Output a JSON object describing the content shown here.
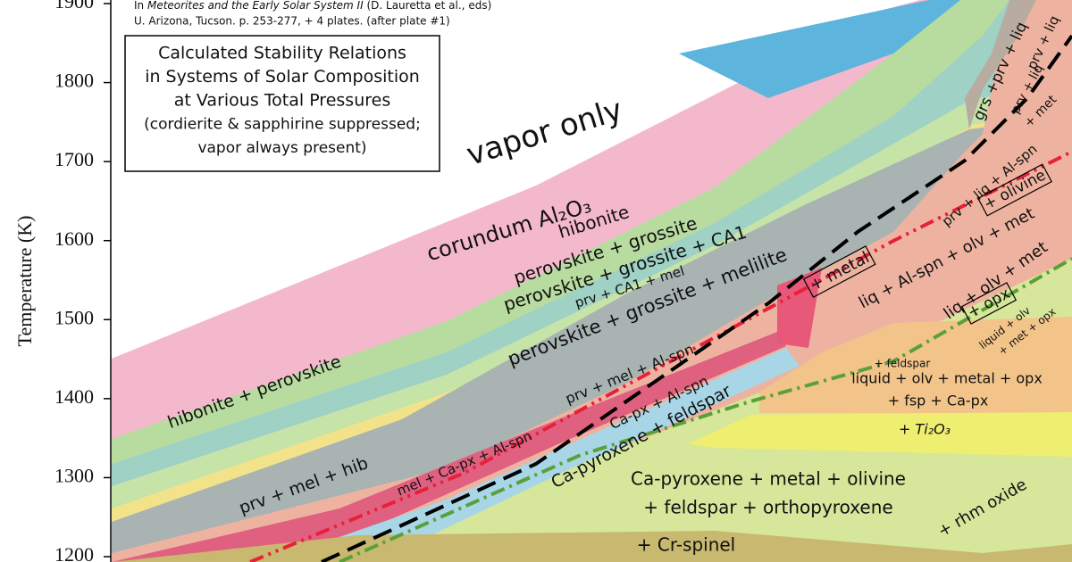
{
  "chart_data": {
    "type": "phase-diagram",
    "ylabel": "Temperature (K)",
    "ylim": [
      1193,
      1905
    ],
    "yticks": [
      1200,
      1300,
      1400,
      1500,
      1600,
      1700,
      1800,
      1900
    ],
    "citation": {
      "prefix": "In",
      "journal": "Meteorites and the Early Solar System II",
      "editors": "(D. Lauretta et al., eds)",
      "publisher": "U. Arizona, Tucson. p. 253-277, + 4 plates.  (after plate #1)"
    },
    "title_lines": [
      "Calculated Stability Relations",
      "in Systems of Solar Composition",
      "at Various Total Pressures",
      "(cordierite & sapphirine suppressed;",
      "vapor always present)"
    ],
    "annotations": [
      {
        "text": "vapor only"
      },
      {
        "text": "corundum Al₂O₃"
      },
      {
        "text": "hibonite"
      },
      {
        "text": "perovskite + grossite"
      },
      {
        "text": "perovskite + grossite + CA1"
      },
      {
        "text": "prv + CA1 + mel"
      },
      {
        "text": "perovskite + grossite + melilite"
      },
      {
        "text": "hibonite + perovskite"
      },
      {
        "text": "prv + mel + hib"
      },
      {
        "text": "prv + mel + Al-spn"
      },
      {
        "text": "mel + Ca-px + Al-spn"
      },
      {
        "text": "Ca-px + Al-spn"
      },
      {
        "text": "Ca-pyroxene + feldspar"
      },
      {
        "text": "Ca-pyroxene + metal + olivine"
      },
      {
        "text": "+ feldspar + orthopyroxene"
      },
      {
        "text": "+ Cr-spinel"
      },
      {
        "text": "+ metal",
        "boxed": true
      },
      {
        "text": "liq + Al-spn + olv + met"
      },
      {
        "text": "prv + liq + Al-spn"
      },
      {
        "text": "+ olivine",
        "boxed": true
      },
      {
        "text": "liq + olv + met"
      },
      {
        "text": "+ opx",
        "boxed": true
      },
      {
        "text": "liquid + olv"
      },
      {
        "text": "+ met + opx"
      },
      {
        "text": "grs +prv + liq"
      },
      {
        "text": "prv + liq"
      },
      {
        "text": "prv + liq"
      },
      {
        "text": "+ met"
      },
      {
        "text": "+ feldspar"
      },
      {
        "text": "liquid + olv + metal + opx"
      },
      {
        "text": "+ fsp + Ca-px"
      },
      {
        "text": "+ Ti₂O₃"
      },
      {
        "text": "+ rhm oxide"
      }
    ]
  }
}
